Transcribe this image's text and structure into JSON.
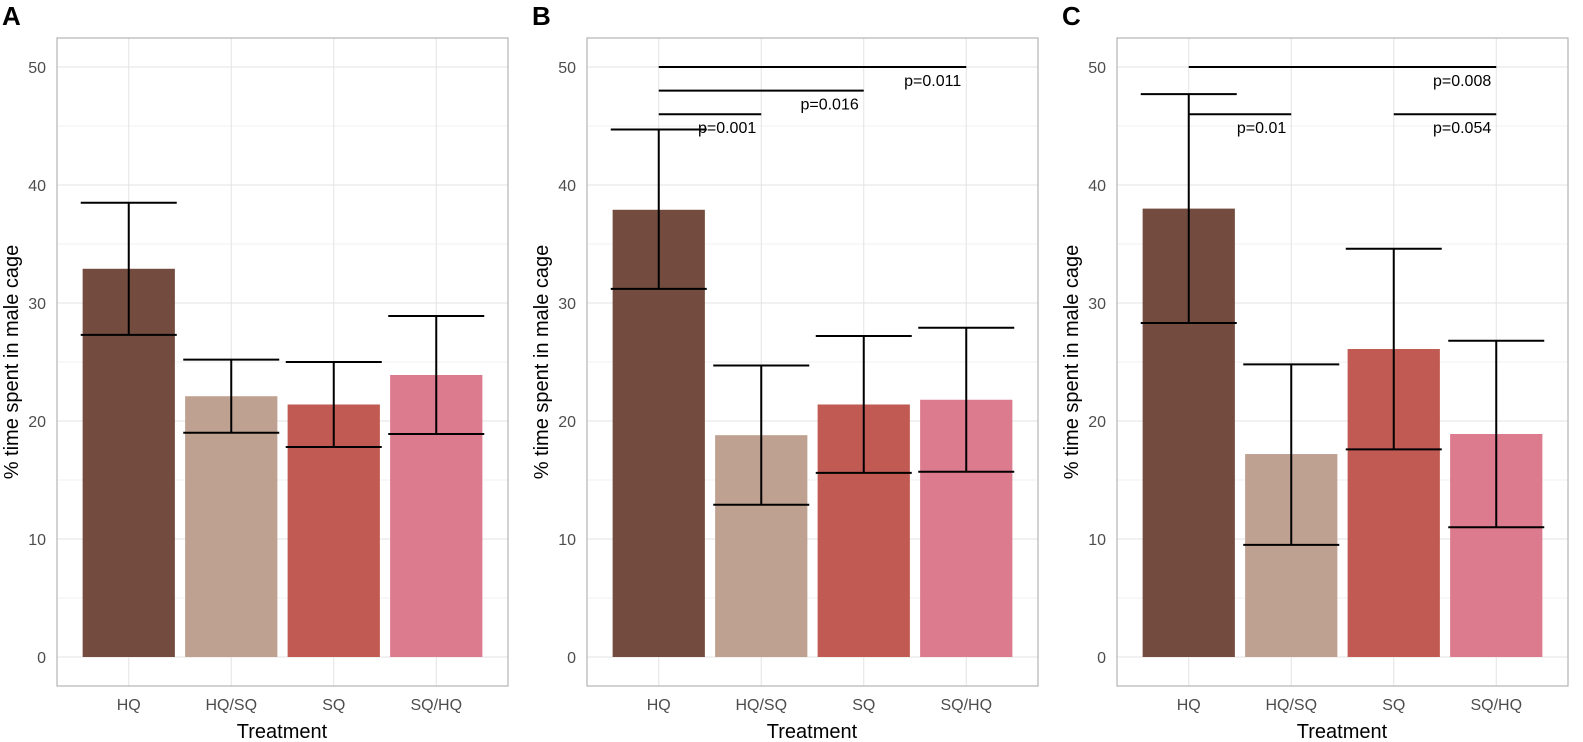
{
  "colors": {
    "HQ": "#734c3f",
    "HQ/SQ": "#bfa191",
    "SQ": "#c05a52",
    "SQ/HQ": "#dc7b8e"
  },
  "chart_data": [
    {
      "type": "bar",
      "panel": "A",
      "categories": [
        "HQ",
        "HQ/SQ",
        "SQ",
        "SQ/HQ"
      ],
      "values": [
        32.9,
        22.1,
        21.4,
        23.9
      ],
      "error_low": [
        27.3,
        19.0,
        17.8,
        18.9
      ],
      "error_high": [
        38.5,
        25.2,
        25.0,
        28.9
      ],
      "xlabel": "Treatment",
      "ylabel": "% time spent in male cage",
      "ylim": [
        0,
        50
      ],
      "yticks": [
        0,
        10,
        20,
        30,
        40,
        50
      ],
      "comparisons": []
    },
    {
      "type": "bar",
      "panel": "B",
      "categories": [
        "HQ",
        "HQ/SQ",
        "SQ",
        "SQ/HQ"
      ],
      "values": [
        37.9,
        18.8,
        21.4,
        21.8
      ],
      "error_low": [
        31.2,
        12.9,
        15.6,
        15.7
      ],
      "error_high": [
        44.7,
        24.7,
        27.2,
        27.9
      ],
      "xlabel": "Treatment",
      "ylabel": "% time spent in male cage",
      "ylim": [
        0,
        50
      ],
      "yticks": [
        0,
        10,
        20,
        30,
        40,
        50
      ],
      "comparisons": [
        {
          "from": "HQ",
          "to": "HQ/SQ",
          "y": 46,
          "label": "p=0.001"
        },
        {
          "from": "HQ",
          "to": "SQ",
          "y": 48,
          "label": "p=0.016"
        },
        {
          "from": "HQ",
          "to": "SQ/HQ",
          "y": 50,
          "label": "p=0.011"
        }
      ]
    },
    {
      "type": "bar",
      "panel": "C",
      "categories": [
        "HQ",
        "HQ/SQ",
        "SQ",
        "SQ/HQ"
      ],
      "values": [
        38.0,
        17.2,
        26.1,
        18.9
      ],
      "error_low": [
        28.3,
        9.5,
        17.6,
        11.0
      ],
      "error_high": [
        47.7,
        24.8,
        34.6,
        26.8
      ],
      "xlabel": "Treatment",
      "ylabel": "% time spent in male cage",
      "ylim": [
        0,
        50
      ],
      "yticks": [
        0,
        10,
        20,
        30,
        40,
        50
      ],
      "comparisons": [
        {
          "from": "HQ",
          "to": "HQ/SQ",
          "y": 46,
          "label": "p=0.01"
        },
        {
          "from": "HQ",
          "to": "SQ/HQ",
          "y": 50,
          "label": "p=0.008"
        },
        {
          "from": "SQ",
          "to": "SQ/HQ",
          "y": 46,
          "label": "p=0.054"
        }
      ]
    }
  ]
}
